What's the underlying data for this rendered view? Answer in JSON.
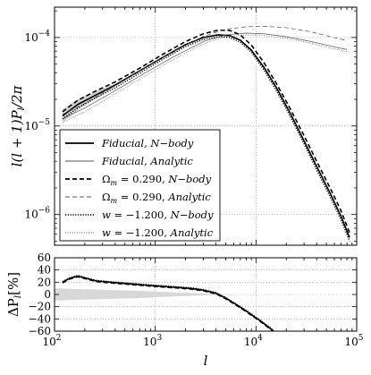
{
  "chart_data": [
    {
      "type": "line",
      "xscale": "log",
      "yscale": "log",
      "xlim": [
        100,
        100000
      ],
      "ylim": [
        4.5e-07,
        0.00022
      ],
      "ylabel": "l(l+1)P_l/2π",
      "yticks": [
        {
          "value": 1e-06,
          "base": "10",
          "exp": "−6"
        },
        {
          "value": 1e-05,
          "base": "10",
          "exp": "−5"
        },
        {
          "value": 0.0001,
          "base": "10",
          "exp": "−4"
        }
      ],
      "grid": true,
      "legend_position": "lower-left",
      "error_band_on": "Fiducial, N−body",
      "series": [
        {
          "name": "Fiducial, N−body",
          "legend_label": [
            "Fiducial, N−body"
          ],
          "style": "solid-thick",
          "x": [
            120,
            170,
            250,
            400,
            700,
            1200,
            2000,
            3000,
            4200,
            5500,
            7000,
            9000,
            12000,
            16000,
            22000,
            30000,
            40000,
            55000,
            70000,
            85000
          ],
          "y": [
            1.3e-05,
            1.75e-05,
            2.2e-05,
            2.9e-05,
            4.2e-05,
            6e-05,
            8.3e-05,
            0.0001,
            0.000107,
            0.000105,
            9.3e-05,
            7.2e-05,
            4.6e-05,
            2.7e-05,
            1.38e-05,
            6.8e-06,
            3.5e-06,
            1.7e-06,
            9.5e-07,
            5.5e-07
          ],
          "band_lower": [
            1.1e-05,
            1.5e-05,
            2e-05,
            2.8e-05,
            4.1e-05,
            5.9e-05,
            8.2e-05,
            9.9e-05,
            0.000106,
            0.000104,
            9.2e-05,
            7.1e-05,
            4.5e-05,
            2.65e-05,
            1.35e-05,
            6.7e-06,
            3.45e-06,
            1.68e-06,
            9.4e-07,
            5.4e-07
          ],
          "band_upper": [
            1.55e-05,
            2e-05,
            2.45e-05,
            3e-05,
            4.3e-05,
            6.1e-05,
            8.4e-05,
            0.000101,
            0.000108,
            0.000106,
            9.4e-05,
            7.3e-05,
            4.7e-05,
            2.75e-05,
            1.41e-05,
            6.9e-06,
            3.55e-06,
            1.72e-06,
            9.6e-07,
            5.6e-07
          ]
        },
        {
          "name": "Fiducial, Analytic",
          "legend_label": [
            "Fiducial, Analytic"
          ],
          "style": "solid-thin",
          "x": [
            120,
            200,
            400,
            800,
            1500,
            3000,
            5000,
            8000,
            12000,
            20000,
            35000,
            55000,
            80000
          ],
          "y": [
            1.2e-05,
            1.6e-05,
            2.5e-05,
            4e-05,
            6e-05,
            9e-05,
            0.000107,
            0.000112,
            0.00011,
            0.000102,
            9e-05,
            8e-05,
            7.3e-05
          ]
        },
        {
          "name": "Ω_m = 0.290, N−body",
          "legend_label": [
            "Ω",
            "m",
            " = 0.290, ",
            "N−body"
          ],
          "style": "dashed-thick",
          "x": [
            120,
            170,
            250,
            400,
            700,
            1200,
            2000,
            3000,
            4200,
            5500,
            7000,
            9000,
            12000,
            16000,
            22000,
            30000,
            40000,
            55000,
            70000,
            85000
          ],
          "y": [
            1.45e-05,
            1.95e-05,
            2.45e-05,
            3.15e-05,
            4.5e-05,
            6.5e-05,
            9e-05,
            0.00011,
            0.000121,
            0.00012,
            0.000107,
            8.2e-05,
            5.2e-05,
            3e-05,
            1.55e-05,
            7.8e-06,
            4e-06,
            1.95e-06,
            1.1e-06,
            6.2e-07
          ]
        },
        {
          "name": "Ω_m = 0.290, Analytic",
          "legend_label": [
            "Ω",
            "m",
            " = 0.290, ",
            "Analytic"
          ],
          "style": "dashed-thin",
          "x": [
            120,
            200,
            400,
            800,
            1500,
            3000,
            5000,
            8000,
            12000,
            20000,
            35000,
            55000,
            80000
          ],
          "y": [
            1.35e-05,
            1.8e-05,
            2.85e-05,
            4.6e-05,
            6.9e-05,
            0.000103,
            0.000124,
            0.000132,
            0.000134,
            0.000129,
            0.000116,
            0.000102,
            9.2e-05
          ]
        },
        {
          "name": "w = −1.200, N−body",
          "legend_label": [
            "w",
            " = −1.200, ",
            "N−body"
          ],
          "style": "dotted-thick",
          "x": [
            120,
            170,
            250,
            400,
            700,
            1200,
            2000,
            3000,
            4200,
            5500,
            7000,
            9000,
            12000,
            16000,
            22000,
            30000,
            40000,
            55000,
            70000,
            85000
          ],
          "y": [
            1.2e-05,
            1.6e-05,
            2.05e-05,
            2.7e-05,
            3.95e-05,
            5.7e-05,
            7.9e-05,
            9.5e-05,
            0.000102,
            0.0001,
            8.8e-05,
            6.8e-05,
            4.3e-05,
            2.5e-05,
            1.27e-05,
            6.3e-06,
            3.2e-06,
            1.55e-06,
            8.7e-07,
            5e-07
          ]
        },
        {
          "name": "w = −1.200, Analytic",
          "legend_label": [
            "w",
            " = −1.200, ",
            "Analytic"
          ],
          "style": "dotted-thin",
          "x": [
            120,
            200,
            400,
            800,
            1500,
            3000,
            5000,
            8000,
            12000,
            20000,
            35000,
            55000,
            80000
          ],
          "y": [
            1.1e-05,
            1.45e-05,
            2.3e-05,
            3.7e-05,
            5.6e-05,
            8.5e-05,
            0.000102,
            0.000107,
            0.000105,
            9.8e-05,
            8.6e-05,
            7.6e-05,
            6.9e-05
          ]
        }
      ]
    },
    {
      "type": "line",
      "xscale": "log",
      "yscale": "linear",
      "xlim": [
        100,
        100000
      ],
      "ylim": [
        -60,
        60
      ],
      "xlabel": "l",
      "ylabel": "ΔP_l[%]",
      "xticks": [
        {
          "value": 100,
          "base": "10",
          "exp": "2"
        },
        {
          "value": 1000,
          "base": "10",
          "exp": "3"
        },
        {
          "value": 10000,
          "base": "10",
          "exp": "4"
        },
        {
          "value": 100000,
          "base": "10",
          "exp": "5"
        }
      ],
      "yticks": [
        {
          "value": -60,
          "label": "−60"
        },
        {
          "value": -40,
          "label": "−40"
        },
        {
          "value": -20,
          "label": "−20"
        },
        {
          "value": 0,
          "label": "0"
        },
        {
          "value": 20,
          "label": "20"
        },
        {
          "value": 40,
          "label": "40"
        },
        {
          "value": 60,
          "label": "60"
        }
      ],
      "grid": true,
      "band": {
        "x": [
          100,
          150,
          250,
          400,
          700,
          1200,
          2000,
          4000
        ],
        "lower": [
          -10,
          -9,
          -8,
          -7,
          -6,
          -4,
          -2.5,
          -1
        ],
        "upper": [
          10,
          9,
          8,
          7,
          6,
          4,
          2.5,
          1
        ]
      },
      "series": [
        {
          "name": "solid",
          "style": "solid-thick",
          "x": [
            120,
            140,
            170,
            210,
            260,
            350,
            500,
            700,
            1000,
            1500,
            2200,
            3000,
            4000,
            5000,
            6000,
            7500,
            9000,
            11000,
            13000,
            15000
          ],
          "y": [
            20,
            26,
            30,
            26,
            22,
            20,
            18,
            16,
            14,
            12,
            10,
            7,
            2,
            -6,
            -14,
            -24,
            -33,
            -43,
            -52,
            -60
          ]
        },
        {
          "name": "dotted",
          "style": "dotted-thick",
          "x": [
            120,
            140,
            170,
            210,
            260,
            350,
            500,
            700,
            1000,
            1500,
            2200,
            3000,
            4000,
            5000,
            6000,
            7500,
            9000,
            11000,
            13000,
            15000
          ],
          "y": [
            21,
            27,
            31,
            27,
            23,
            21,
            19,
            17,
            15,
            13,
            11,
            8,
            3,
            -5,
            -13,
            -23,
            -32,
            -42,
            -51,
            -59
          ]
        },
        {
          "name": "dashed",
          "style": "dashed-thick",
          "x": [
            120,
            140,
            170,
            210,
            260,
            350,
            500,
            700,
            1000,
            1500,
            2200,
            3000,
            4000,
            5000,
            6000,
            7500,
            9000,
            11000,
            13000,
            15000
          ],
          "y": [
            19,
            25,
            29,
            25,
            21,
            19,
            17,
            15,
            13,
            11,
            9,
            6,
            1,
            -7,
            -15,
            -25,
            -34,
            -44,
            -53,
            -61
          ]
        }
      ]
    }
  ]
}
